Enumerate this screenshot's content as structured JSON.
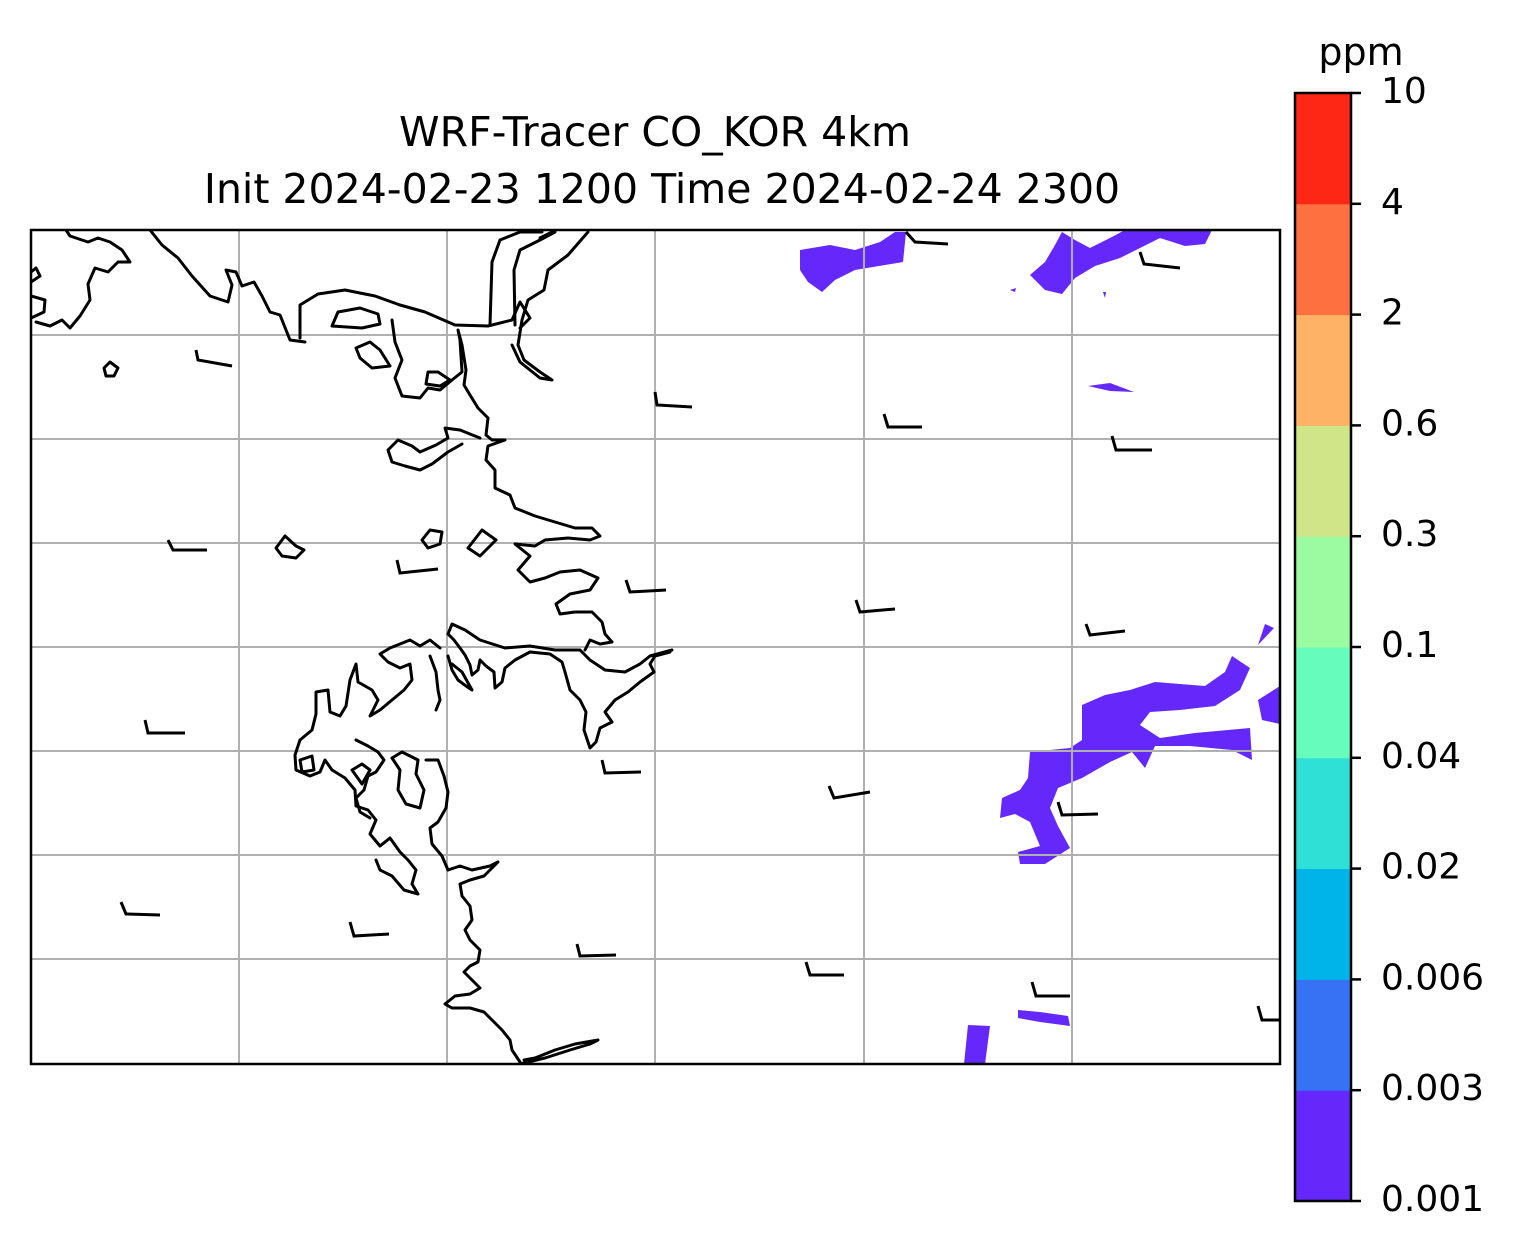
{
  "title": {
    "line1": "WRF-Tracer CO_KOR 4km",
    "line2": "Init 2024-02-23 1200 Time 2024-02-24 2300"
  },
  "colorbar": {
    "unit": "ppm",
    "levels": [
      "0.001",
      "0.003",
      "0.006",
      "0.02",
      "0.04",
      "0.1",
      "0.3",
      "0.6",
      "2",
      "4",
      "10"
    ],
    "colors": [
      "#6428fa",
      "#3573f4",
      "#00b4ea",
      "#2fe0d7",
      "#66fcbb",
      "#9bfba0",
      "#d0e488",
      "#feb266",
      "#fe7040",
      "#fe2716"
    ]
  },
  "map": {
    "gridlines": true,
    "tracer_color": "#6428fa",
    "coastline_color": "#000000"
  }
}
